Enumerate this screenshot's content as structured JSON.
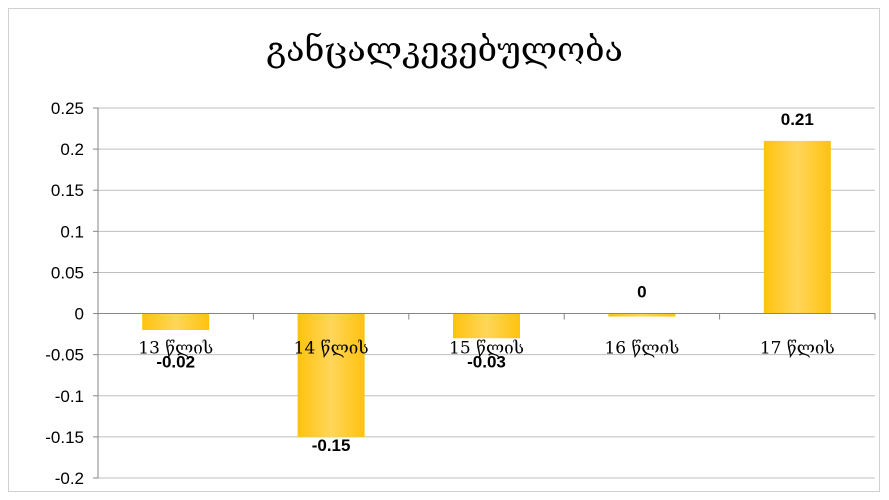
{
  "chart_data": {
    "type": "bar",
    "title": "განცალკევებულობა",
    "categories": [
      "13 წლის",
      "14 წლის",
      "15 წლის",
      "16 წლის",
      "17 წლის"
    ],
    "values": [
      -0.02,
      -0.15,
      -0.03,
      0,
      0.21
    ],
    "data_labels": [
      "-0.02",
      "-0.15",
      "-0.03",
      "0",
      "0.21"
    ],
    "yticks": [
      "0.25",
      "0.2",
      "0.15",
      "0.1",
      "0.05",
      "0",
      "-0.05",
      "-0.1",
      "-0.15",
      "-0.2"
    ],
    "ylim": [
      -0.2,
      0.25
    ],
    "grid": true,
    "bar_color": "#FFC20E",
    "bar_color_light": "#FFD65A"
  }
}
